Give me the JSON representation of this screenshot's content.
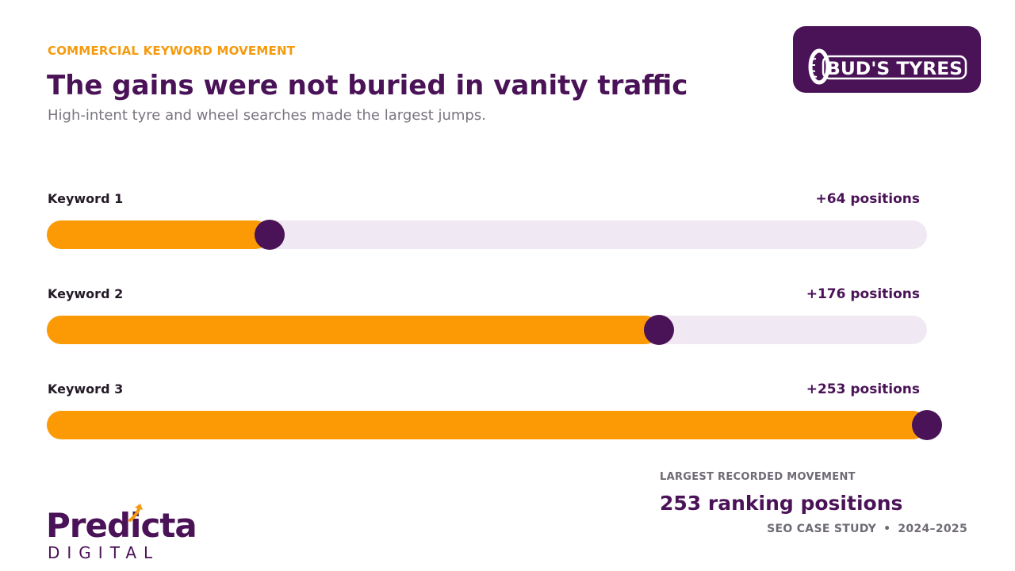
{
  "header": {
    "eyebrow": "COMMERCIAL KEYWORD MOVEMENT",
    "title": "The gains were not buried in vanity traffic",
    "subtitle": "High-intent tyre and wheel searches made the largest jumps."
  },
  "client_logo": {
    "text": "BUD'S TYRES"
  },
  "chart_data": {
    "type": "bar",
    "orientation": "horizontal",
    "categories": [
      "Keyword 1",
      "Keyword 2",
      "Keyword 3"
    ],
    "values": [
      64,
      176,
      253
    ],
    "value_labels": [
      "+64 positions",
      "+176 positions",
      "+253 positions"
    ],
    "xlim": [
      0,
      253
    ],
    "grid": false,
    "colors": {
      "fill": "#fb9a05",
      "track": "#f0e8f2",
      "marker": "#4a1257"
    }
  },
  "kpi": {
    "label": "LARGEST RECORDED MOVEMENT",
    "value": "253 ranking positions"
  },
  "footer": {
    "left": "SEO CASE STUDY",
    "separator": "•",
    "right": "2024–2025"
  },
  "agency_logo": {
    "word": "Predicta",
    "sub": "DIGITAL"
  },
  "colors": {
    "brand_purple": "#4a1257",
    "accent_orange": "#f59a0c"
  }
}
